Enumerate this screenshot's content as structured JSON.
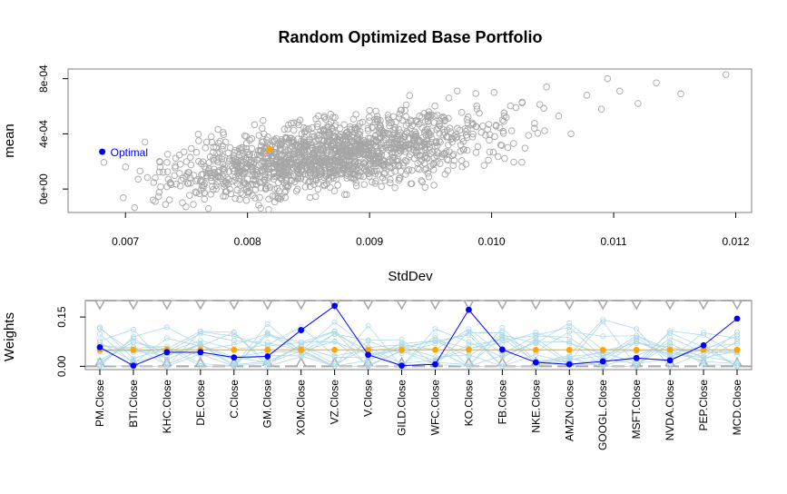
{
  "chart_data": [
    {
      "type": "scatter",
      "title": "Random Optimized Base Portfolio",
      "xlabel": "StdDev",
      "ylabel": "mean",
      "xlim": [
        0.00653,
        0.01213
      ],
      "ylim": [
        -0.00017,
        0.00087
      ],
      "x_ticks": [
        "0.007",
        "0.008",
        "0.009",
        "0.010",
        "0.011",
        "0.012"
      ],
      "y_ticks": [
        "0e+00",
        "4e-04",
        "8e-04"
      ],
      "grid": false,
      "colors": {
        "cloud": "#a6a6a6",
        "optimal": "#0000ff",
        "equal_weight": "#ffa500"
      },
      "series": [
        {
          "values": [
            [
              0.00712,
              0.00013
            ],
            [
              0.00716,
              0.00034
            ],
            [
              0.007,
              0.00016
            ],
            [
              0.00728,
              0.0002
            ],
            [
              0.00735,
              7e-05
            ],
            [
              0.00748,
              0.00027
            ],
            [
              0.00752,
              0.00012
            ],
            [
              0.0076,
              0.00035
            ],
            [
              0.00765,
              4e-05
            ],
            [
              0.00772,
              0.00022
            ],
            [
              0.0078,
              0.00041
            ],
            [
              0.00788,
              0.00015
            ],
            [
              0.00795,
              0.0003
            ],
            [
              0.008,
              -2e-05
            ],
            [
              0.00805,
              0.00025
            ],
            [
              0.00812,
              0.00044
            ],
            [
              0.00818,
              0.0001
            ],
            [
              0.00825,
              0.00033
            ],
            [
              0.0083,
              0.00019
            ],
            [
              0.00838,
              0.00048
            ],
            [
              0.00842,
              0.00027
            ],
            [
              0.0085,
              5e-05
            ],
            [
              0.00855,
              0.00038
            ],
            [
              0.00862,
              0.00022
            ],
            [
              0.0087,
              0.00052
            ],
            [
              0.00875,
              0.00031
            ],
            [
              0.00882,
              0.00014
            ],
            [
              0.00888,
              0.00043
            ],
            [
              0.00895,
              0.00026
            ],
            [
              0.009,
              0.00057
            ],
            [
              0.00905,
              0.00035
            ],
            [
              0.00912,
              0.00018
            ],
            [
              0.00918,
              0.00048
            ],
            [
              0.00925,
              0.0003
            ],
            [
              0.0093,
              0.00061
            ],
            [
              0.00938,
              0.0004
            ],
            [
              0.00945,
              0.00023
            ],
            [
              0.0095,
              0.00053
            ],
            [
              0.00958,
              0.00034
            ],
            [
              0.00965,
              0.00066
            ],
            [
              0.00972,
              0.00044
            ],
            [
              0.0098,
              0.00028
            ],
            [
              0.00988,
              0.00058
            ],
            [
              0.00995,
              0.00039
            ],
            [
              0.01002,
              0.0007
            ],
            [
              0.0101,
              0.00049
            ],
            [
              0.01018,
              0.00033
            ],
            [
              0.01025,
              0.00063
            ],
            [
              0.01035,
              0.00044
            ],
            [
              0.01045,
              0.00074
            ],
            [
              0.01055,
              0.00053
            ],
            [
              0.01065,
              0.0004
            ],
            [
              0.01078,
              0.00068
            ],
            [
              0.0109,
              0.00058
            ],
            [
              0.01105,
              0.00071
            ],
            [
              0.0112,
              0.00062
            ],
            [
              0.01135,
              0.00077
            ],
            [
              0.01155,
              0.00069
            ],
            [
              0.01192,
              0.00083
            ],
            [
              0.01095,
              0.0008
            ],
            [
              0.0076,
              0.0002
            ],
            [
              0.0079,
              0.00028
            ],
            [
              0.0082,
              0.00024
            ],
            [
              0.00848,
              0.00031
            ],
            [
              0.00878,
              0.00036
            ],
            [
              0.00908,
              0.00041
            ],
            [
              0.00935,
              0.00046
            ],
            [
              0.00962,
              0.0005
            ],
            [
              0.0099,
              0.00055
            ],
            [
              0.0102,
              0.00059
            ],
            [
              0.00745,
              0.00018
            ],
            [
              0.00775,
              0.00026
            ],
            [
              0.00808,
              0.00021
            ],
            [
              0.00835,
              0.00029
            ],
            [
              0.00868,
              0.00024
            ],
            [
              0.00898,
              0.00033
            ],
            [
              0.00928,
              0.00038
            ],
            [
              0.00955,
              0.00043
            ],
            [
              0.00985,
              0.00047
            ],
            [
              0.01012,
              0.00052
            ]
          ]
        },
        {
          "name": "Optimal",
          "values": [
            [
              0.00681,
              0.00027
            ]
          ]
        },
        {
          "values": [
            [
              0.00818,
              0.00029
            ]
          ]
        }
      ]
    },
    {
      "type": "line",
      "xlabel": "",
      "ylabel": "Weights",
      "ylim": [
        -0.01,
        0.2
      ],
      "y_ticks": [
        "0.00",
        "0.15"
      ],
      "categories": [
        "PM.Close",
        "BTI.Close",
        "KHC.Close",
        "DE.Close",
        "C.Close",
        "GM.Close",
        "XOM.Close",
        "VZ.Close",
        "V.Close",
        "GILD.Close",
        "WFC.Close",
        "KO.Close",
        "FB.Close",
        "NKE.Close",
        "AMZN.Close",
        "GOOGL.Close",
        "MSFT.Close",
        "NVDA.Close",
        "PEP.Close",
        "MCD.Close"
      ],
      "series": [
        {
          "name": "Optimal",
          "values": [
            0.058,
            0.002,
            0.043,
            0.043,
            0.027,
            0.03,
            0.11,
            0.184,
            0.035,
            0.002,
            0.006,
            0.172,
            0.051,
            0.012,
            0.006,
            0.015,
            0.025,
            0.018,
            0.064,
            0.145
          ]
        },
        {
          "values": [
            0.05,
            0.05,
            0.05,
            0.05,
            0.05,
            0.05,
            0.05,
            0.05,
            0.05,
            0.05,
            0.05,
            0.05,
            0.05,
            0.05,
            0.05,
            0.05,
            0.05,
            0.05,
            0.05,
            0.05
          ]
        }
      ],
      "upper_bound": 0.2,
      "lower_bound": 0.0,
      "colors": {
        "optimal": "#0000ff",
        "equal_weight": "#ffa500",
        "random": "#add8e6",
        "bounds": "#a9a9a9"
      }
    }
  ]
}
